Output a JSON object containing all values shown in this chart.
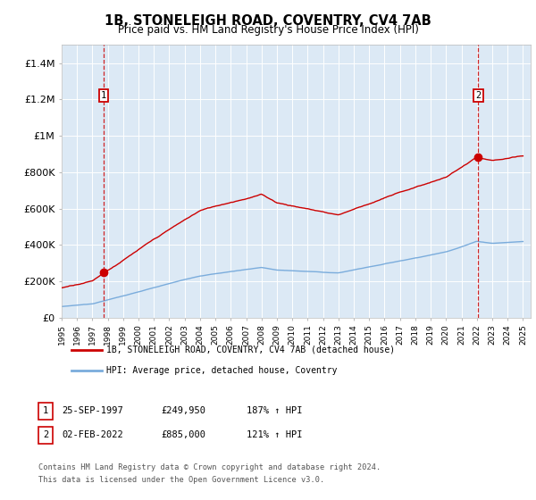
{
  "title": "1B, STONELEIGH ROAD, COVENTRY, CV4 7AB",
  "subtitle": "Price paid vs. HM Land Registry's House Price Index (HPI)",
  "bg_color": "#dce9f5",
  "sale1_year": 1997.73,
  "sale1_price": 249950,
  "sale2_year": 2022.09,
  "sale2_price": 885000,
  "legend_line1": "1B, STONELEIGH ROAD, COVENTRY, CV4 7AB (detached house)",
  "legend_line2": "HPI: Average price, detached house, Coventry",
  "table_row1": [
    "1",
    "25-SEP-1997",
    "£249,950",
    "187% ↑ HPI"
  ],
  "table_row2": [
    "2",
    "02-FEB-2022",
    "£885,000",
    "121% ↑ HPI"
  ],
  "footnote1": "Contains HM Land Registry data © Crown copyright and database right 2024.",
  "footnote2": "This data is licensed under the Open Government Licence v3.0.",
  "red_color": "#cc0000",
  "blue_color": "#7aacdc",
  "xmin": 1995,
  "xmax": 2025.5,
  "ymin": 0,
  "ymax": 1500000,
  "yticks": [
    0,
    200000,
    400000,
    600000,
    800000,
    1000000,
    1200000,
    1400000
  ],
  "ylabels": [
    "£0",
    "£200K",
    "£400K",
    "£600K",
    "£800K",
    "£1M",
    "£1.2M",
    "£1.4M"
  ]
}
